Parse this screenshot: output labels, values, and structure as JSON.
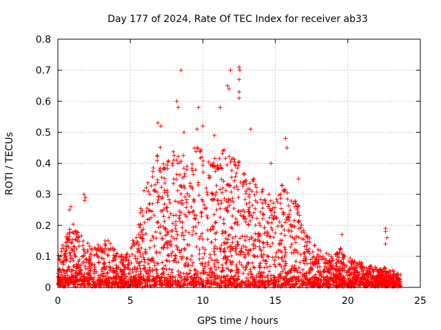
{
  "chart_data": {
    "type": "scatter",
    "title": "Day 177 of 2024, Rate Of TEC Index for receiver ab33",
    "xlabel": "GPS time / hours",
    "ylabel": "ROTI / TECUs",
    "xlim": [
      0,
      25
    ],
    "ylim": [
      0,
      0.8
    ],
    "xticks": [
      "0",
      "5",
      "10",
      "15",
      "20",
      "25"
    ],
    "yticks": [
      "0",
      "0.1",
      "0.2",
      "0.3",
      "0.4",
      "0.5",
      "0.6",
      "0.7",
      "0.8"
    ],
    "grid": true,
    "marker": "+",
    "color": "#ff0000",
    "x_data_range": [
      0,
      23.7
    ],
    "envelope": [
      [
        0.0,
        0.1
      ],
      [
        0.5,
        0.16
      ],
      [
        1.0,
        0.2
      ],
      [
        1.5,
        0.17
      ],
      [
        2.0,
        0.14
      ],
      [
        2.5,
        0.13
      ],
      [
        3.0,
        0.14
      ],
      [
        3.5,
        0.16
      ],
      [
        4.0,
        0.11
      ],
      [
        4.5,
        0.1
      ],
      [
        5.0,
        0.12
      ],
      [
        5.5,
        0.22
      ],
      [
        6.0,
        0.32
      ],
      [
        6.5,
        0.38
      ],
      [
        7.0,
        0.45
      ],
      [
        7.5,
        0.4
      ],
      [
        8.0,
        0.44
      ],
      [
        8.5,
        0.42
      ],
      [
        9.0,
        0.42
      ],
      [
        9.5,
        0.45
      ],
      [
        10.0,
        0.46
      ],
      [
        10.5,
        0.44
      ],
      [
        11.0,
        0.43
      ],
      [
        11.5,
        0.45
      ],
      [
        12.0,
        0.42
      ],
      [
        12.5,
        0.4
      ],
      [
        13.0,
        0.36
      ],
      [
        13.5,
        0.35
      ],
      [
        14.0,
        0.32
      ],
      [
        14.5,
        0.3
      ],
      [
        15.0,
        0.33
      ],
      [
        15.5,
        0.37
      ],
      [
        16.0,
        0.32
      ],
      [
        16.5,
        0.28
      ],
      [
        17.0,
        0.18
      ],
      [
        17.5,
        0.15
      ],
      [
        18.0,
        0.12
      ],
      [
        18.5,
        0.11
      ],
      [
        19.0,
        0.1
      ],
      [
        19.5,
        0.12
      ],
      [
        20.0,
        0.09
      ],
      [
        20.5,
        0.08
      ],
      [
        21.0,
        0.08
      ],
      [
        21.5,
        0.07
      ],
      [
        22.0,
        0.06
      ],
      [
        22.5,
        0.06
      ],
      [
        23.0,
        0.05
      ],
      [
        23.7,
        0.04
      ]
    ],
    "notable_points": [
      [
        0.8,
        0.25
      ],
      [
        0.9,
        0.26
      ],
      [
        1.8,
        0.3
      ],
      [
        1.9,
        0.29
      ],
      [
        1.85,
        0.28
      ],
      [
        6.9,
        0.53
      ],
      [
        7.1,
        0.52
      ],
      [
        8.2,
        0.6
      ],
      [
        8.3,
        0.58
      ],
      [
        8.5,
        0.7
      ],
      [
        8.7,
        0.5
      ],
      [
        9.6,
        0.51
      ],
      [
        9.7,
        0.58
      ],
      [
        10.0,
        0.52
      ],
      [
        10.8,
        0.49
      ],
      [
        11.2,
        0.58
      ],
      [
        11.7,
        0.65
      ],
      [
        11.8,
        0.64
      ],
      [
        11.9,
        0.7
      ],
      [
        12.5,
        0.71
      ],
      [
        12.55,
        0.7
      ],
      [
        12.5,
        0.67
      ],
      [
        12.5,
        0.63
      ],
      [
        12.5,
        0.61
      ],
      [
        13.3,
        0.51
      ],
      [
        14.7,
        0.4
      ],
      [
        15.7,
        0.48
      ],
      [
        15.8,
        0.45
      ],
      [
        16.6,
        0.35
      ],
      [
        19.6,
        0.17
      ],
      [
        22.6,
        0.19
      ],
      [
        22.6,
        0.18
      ],
      [
        22.7,
        0.16
      ],
      [
        22.6,
        0.14
      ]
    ]
  }
}
